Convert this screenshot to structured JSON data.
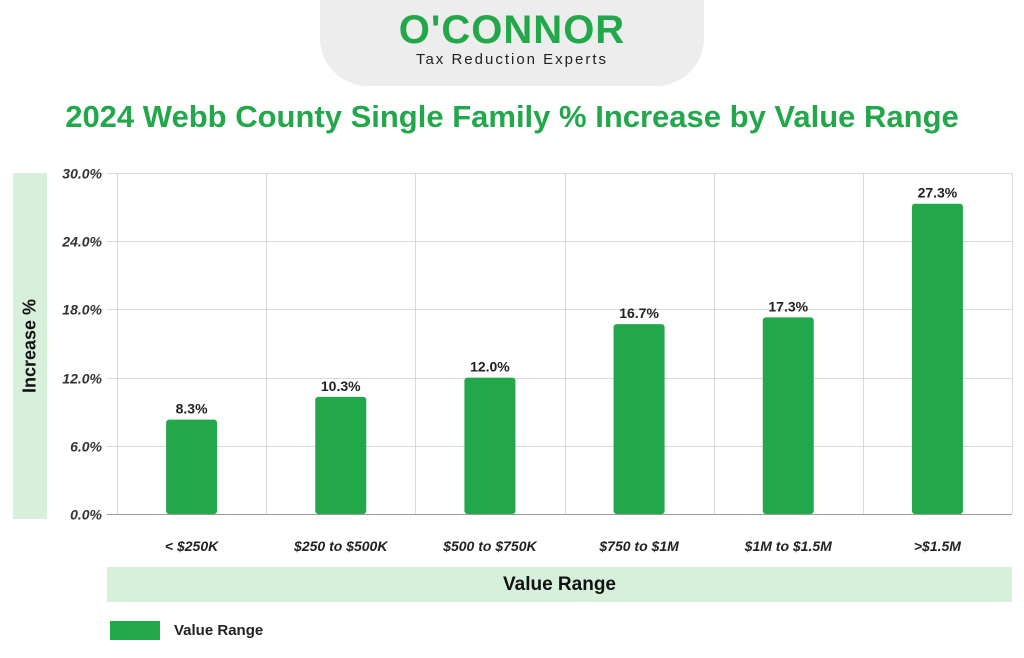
{
  "logo": {
    "wordmark": "O'CONNOR",
    "tagline": "Tax Reduction Experts"
  },
  "colors": {
    "bar": "#22a84a",
    "title": "#22a84a",
    "band": "#d6f0dc",
    "grid": "#d9d9d9"
  },
  "chart_data": {
    "type": "bar",
    "title": "2024 Webb County Single Family % Increase by Value Range",
    "xlabel": "Value Range",
    "ylabel": "Increase %",
    "categories": [
      "< $250K",
      "$250 to $500K",
      "$500 to $750K",
      "$750 to $1M",
      "$1M to $1.5M",
      ">$1.5M"
    ],
    "series": [
      {
        "name": "Value Range",
        "values": [
          8.3,
          10.3,
          12.0,
          16.7,
          17.3,
          27.3
        ],
        "labels": [
          "8.3%",
          "10.3%",
          "12.0%",
          "16.7%",
          "17.3%",
          "27.3%"
        ]
      }
    ],
    "ylim": [
      0,
      30
    ],
    "yticks": [
      0,
      6,
      12,
      18,
      24,
      30
    ],
    "ytick_labels": [
      "0.0%",
      "6.0%",
      "12.0%",
      "18.0%",
      "24.0%",
      "30.0%"
    ],
    "grid": true,
    "legend_position": "bottom-left"
  }
}
